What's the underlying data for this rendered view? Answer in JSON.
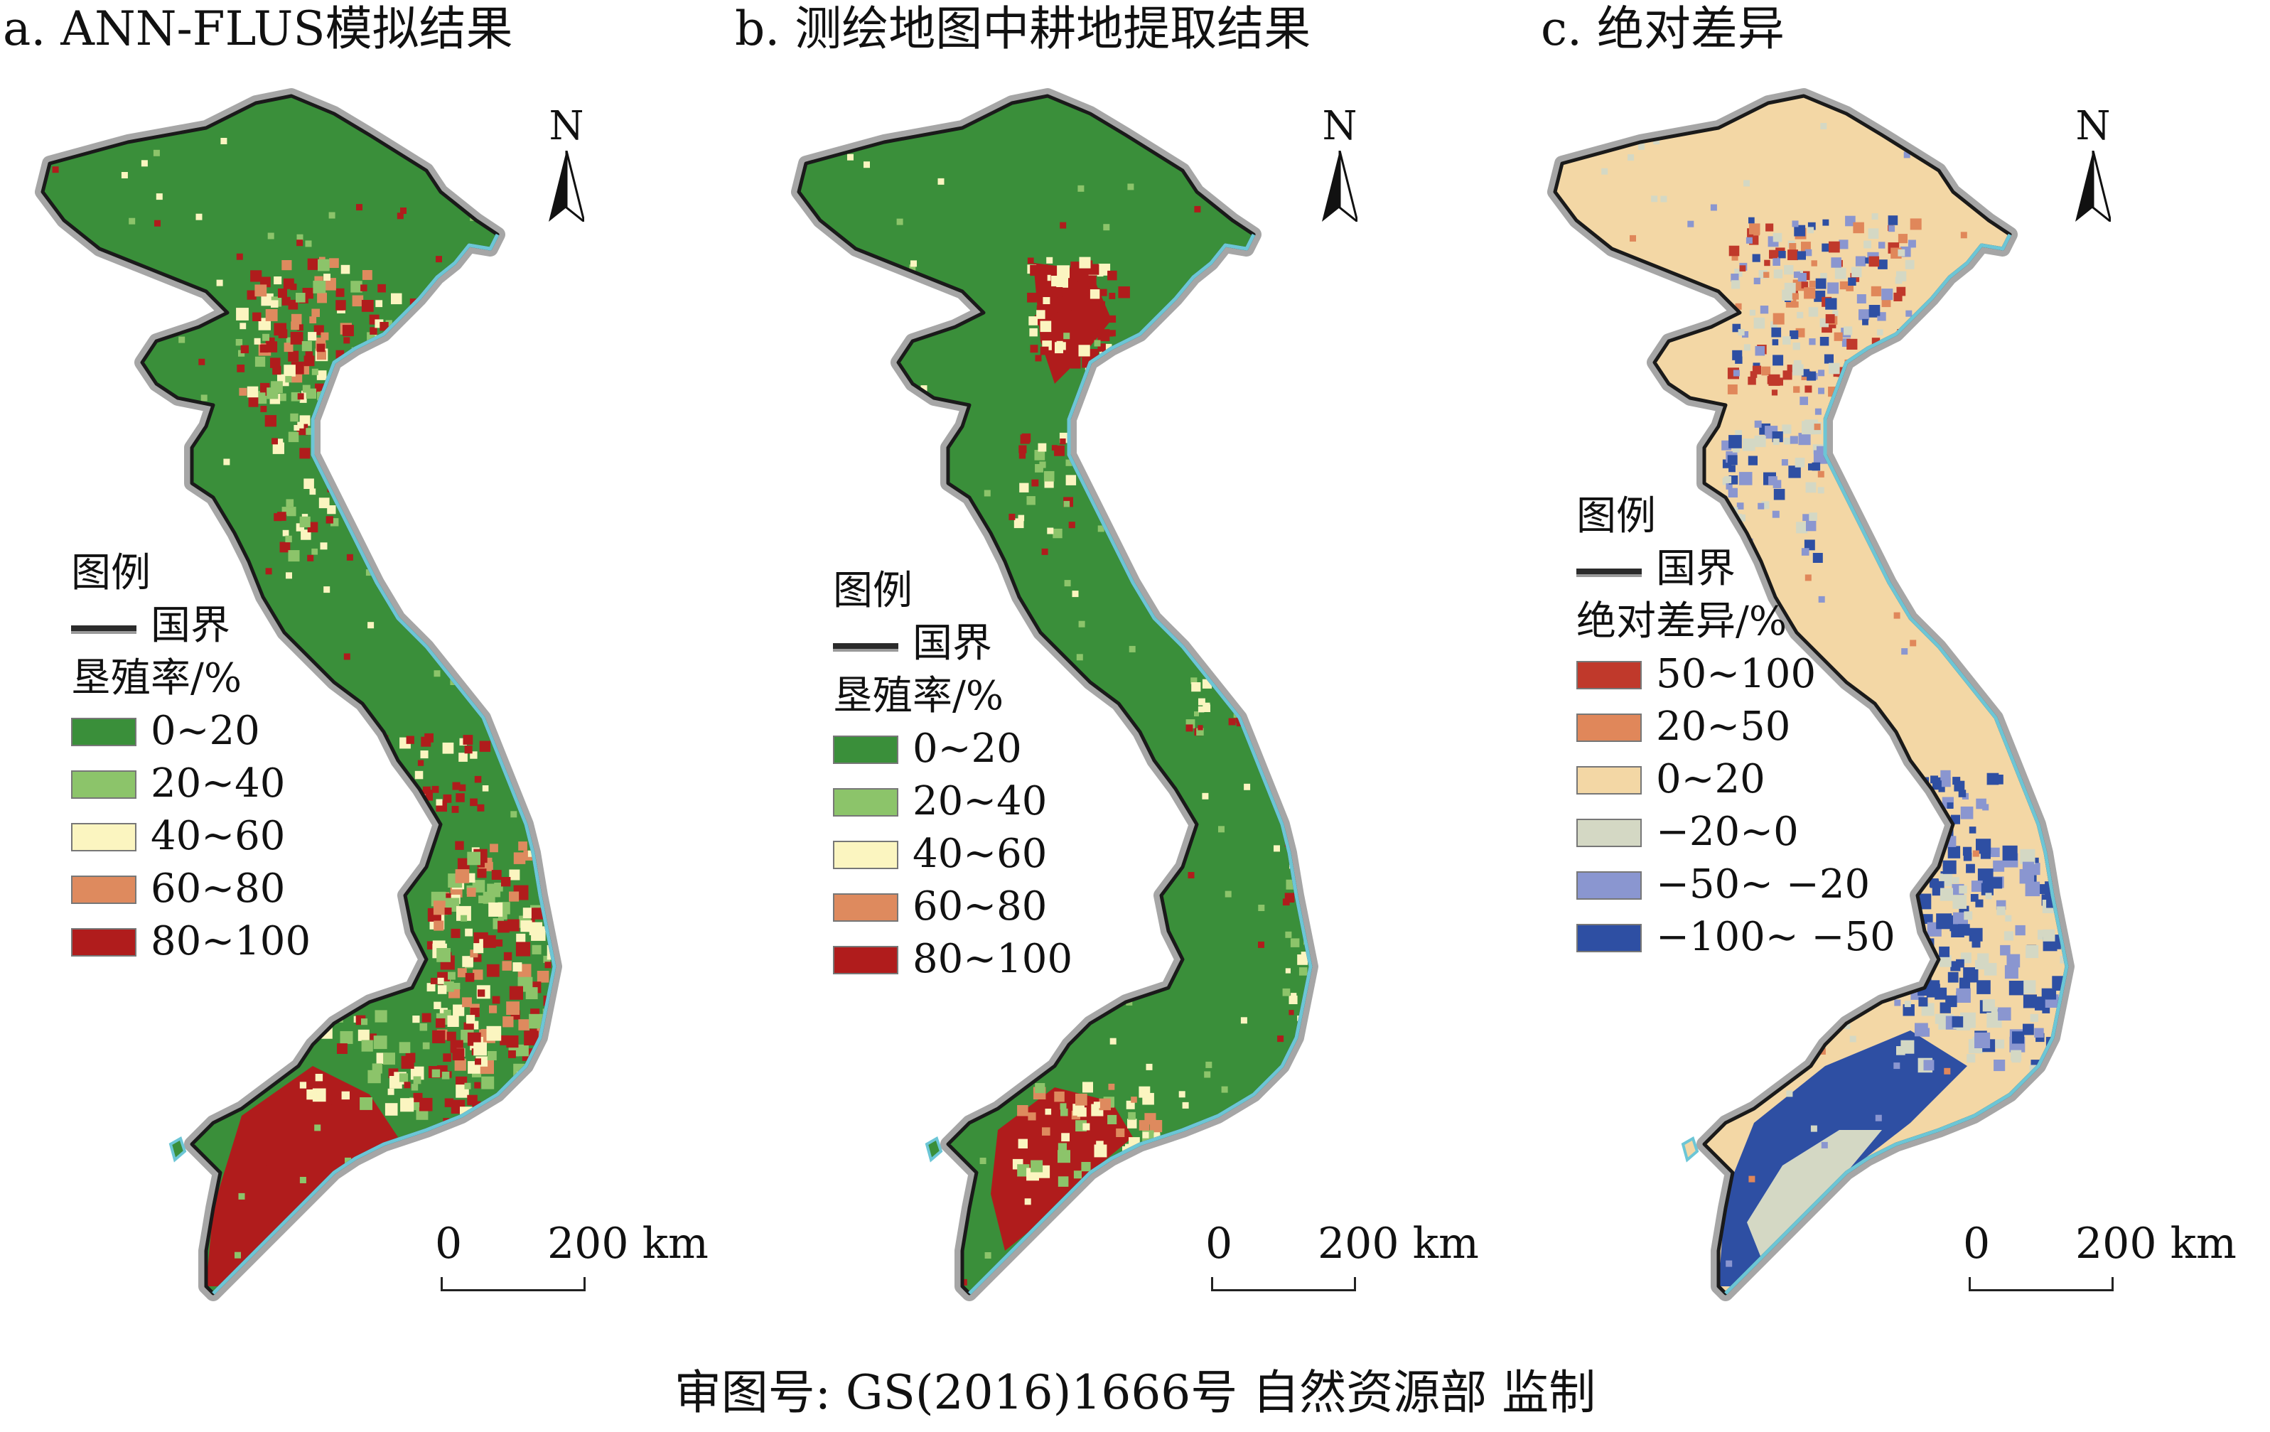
{
  "footer": {
    "text": "审图号: GS(2016)1666号 自然资源部 监制"
  },
  "panels": [
    {
      "title": "a. ANN-FLUS模拟结果",
      "north": "N",
      "legend_title": "图例",
      "boundary_label": "国界",
      "class_title": "垦殖率/%",
      "classes": [
        {
          "label": "0~20",
          "color": "#3a8f3a"
        },
        {
          "label": "20~40",
          "color": "#8cc46a"
        },
        {
          "label": "40~60",
          "color": "#fbf5c0"
        },
        {
          "label": "60~80",
          "color": "#de8a5e"
        },
        {
          "label": "80~100",
          "color": "#b01c1c"
        }
      ],
      "scale": {
        "zero": "0",
        "end": "200 km"
      }
    },
    {
      "title": "b. 测绘地图中耕地提取结果",
      "north": "N",
      "legend_title": "图例",
      "boundary_label": "国界",
      "class_title": "垦殖率/%",
      "classes": [
        {
          "label": "0~20",
          "color": "#3a8f3a"
        },
        {
          "label": "20~40",
          "color": "#8cc46a"
        },
        {
          "label": "40~60",
          "color": "#fbf5c0"
        },
        {
          "label": "60~80",
          "color": "#de8a5e"
        },
        {
          "label": "80~100",
          "color": "#b01c1c"
        }
      ],
      "scale": {
        "zero": "0",
        "end": "200 km"
      }
    },
    {
      "title": "c. 绝对差异",
      "north": "N",
      "legend_title": "图例",
      "boundary_label": "国界",
      "class_title": "绝对差异/%",
      "classes": [
        {
          "label": "50~100",
          "color": "#c0392b"
        },
        {
          "label": "20~50",
          "color": "#e0875a"
        },
        {
          "label": "0~20",
          "color": "#f3d7a5"
        },
        {
          "label": "−20~0",
          "color": "#d4d8c4"
        },
        {
          "label": "−50~ −20",
          "color": "#8a96d0"
        },
        {
          "label": "−100~ −50",
          "color": "#2e4fa3"
        }
      ],
      "scale": {
        "zero": "0",
        "end": "200 km"
      }
    }
  ]
}
